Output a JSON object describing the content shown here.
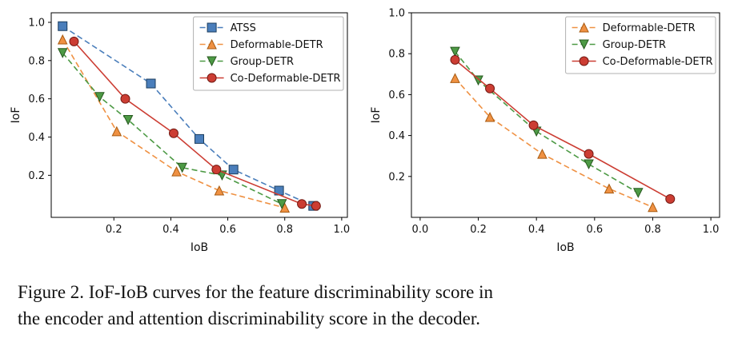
{
  "figure": {
    "caption_line1": "Figure 2. IoF-IoB curves for the feature discriminability score in",
    "caption_line2": "the encoder and attention discriminability score in the decoder."
  },
  "colors": {
    "background": "#ffffff",
    "axis": "#000000",
    "text": "#111111",
    "legend_border": "#b0b0b0",
    "atss_blue": "#4a7ebb",
    "deformable_orange": "#ef9143",
    "group_green": "#4d9a45",
    "co_deformable_red": "#cc3d33"
  },
  "chart_data": [
    {
      "type": "line",
      "title": "",
      "xlabel": "IoB",
      "ylabel": "IoF",
      "xlim": [
        -0.02,
        1.02
      ],
      "ylim": [
        -0.02,
        1.05
      ],
      "xticks": [
        0.2,
        0.4,
        0.6,
        0.8,
        1.0
      ],
      "xtick_labels": [
        "0.2",
        "0.4",
        "0.6",
        "0.8",
        "1.0"
      ],
      "yticks": [
        0.2,
        0.4,
        0.6,
        0.8,
        1.0
      ],
      "ytick_labels": [
        "0.2",
        "0.4",
        "0.6",
        "0.8",
        "1.0"
      ],
      "grid": false,
      "legend_position": "upper right",
      "series": [
        {
          "name": "ATSS",
          "marker": "square",
          "line_style": "dashed",
          "color": "#4a7ebb",
          "edge_color": "#1c3e5f",
          "points": [
            [
              0.02,
              0.98
            ],
            [
              0.33,
              0.68
            ],
            [
              0.5,
              0.39
            ],
            [
              0.62,
              0.23
            ],
            [
              0.78,
              0.12
            ],
            [
              0.9,
              0.04
            ]
          ]
        },
        {
          "name": "Deformable-DETR",
          "marker": "triangle-up",
          "line_style": "dashed",
          "color": "#ef9143",
          "edge_color": "#a85a10",
          "points": [
            [
              0.02,
              0.91
            ],
            [
              0.21,
              0.43
            ],
            [
              0.42,
              0.22
            ],
            [
              0.57,
              0.12
            ],
            [
              0.8,
              0.03
            ]
          ]
        },
        {
          "name": "Group-DETR",
          "marker": "triangle-down",
          "line_style": "dashed",
          "color": "#4d9a45",
          "edge_color": "#27591f",
          "points": [
            [
              0.02,
              0.84
            ],
            [
              0.15,
              0.61
            ],
            [
              0.25,
              0.49
            ],
            [
              0.44,
              0.24
            ],
            [
              0.58,
              0.2
            ],
            [
              0.79,
              0.05
            ]
          ]
        },
        {
          "name": "Co-Deformable-DETR",
          "marker": "circle",
          "line_style": "solid",
          "color": "#cc3d33",
          "edge_color": "#741b14",
          "points": [
            [
              0.06,
              0.9
            ],
            [
              0.24,
              0.6
            ],
            [
              0.41,
              0.42
            ],
            [
              0.56,
              0.23
            ],
            [
              0.86,
              0.05
            ],
            [
              0.91,
              0.04
            ]
          ]
        }
      ]
    },
    {
      "type": "line",
      "title": "",
      "xlabel": "IoB",
      "ylabel": "IoF",
      "xlim": [
        -0.03,
        1.03
      ],
      "ylim": [
        0.0,
        1.0
      ],
      "xticks": [
        0.0,
        0.2,
        0.4,
        0.6,
        0.8,
        1.0
      ],
      "xtick_labels": [
        "0.0",
        "0.2",
        "0.4",
        "0.6",
        "0.8",
        "1.0"
      ],
      "yticks": [
        0.2,
        0.4,
        0.6,
        0.8,
        1.0
      ],
      "ytick_labels": [
        "0.2",
        "0.4",
        "0.6",
        "0.8",
        "1.0"
      ],
      "grid": false,
      "legend_position": "upper right",
      "series": [
        {
          "name": "Deformable-DETR",
          "marker": "triangle-up",
          "line_style": "dashed",
          "color": "#ef9143",
          "edge_color": "#a85a10",
          "points": [
            [
              0.12,
              0.68
            ],
            [
              0.24,
              0.49
            ],
            [
              0.42,
              0.31
            ],
            [
              0.65,
              0.14
            ],
            [
              0.8,
              0.05
            ]
          ]
        },
        {
          "name": "Group-DETR",
          "marker": "triangle-down",
          "line_style": "dashed",
          "color": "#4d9a45",
          "edge_color": "#27591f",
          "points": [
            [
              0.12,
              0.81
            ],
            [
              0.2,
              0.67
            ],
            [
              0.4,
              0.42
            ],
            [
              0.58,
              0.26
            ],
            [
              0.75,
              0.12
            ]
          ]
        },
        {
          "name": "Co-Deformable-DETR",
          "marker": "circle",
          "line_style": "solid",
          "color": "#cc3d33",
          "edge_color": "#741b14",
          "points": [
            [
              0.12,
              0.77
            ],
            [
              0.24,
              0.63
            ],
            [
              0.39,
              0.45
            ],
            [
              0.58,
              0.31
            ],
            [
              0.86,
              0.09
            ]
          ]
        }
      ]
    }
  ]
}
